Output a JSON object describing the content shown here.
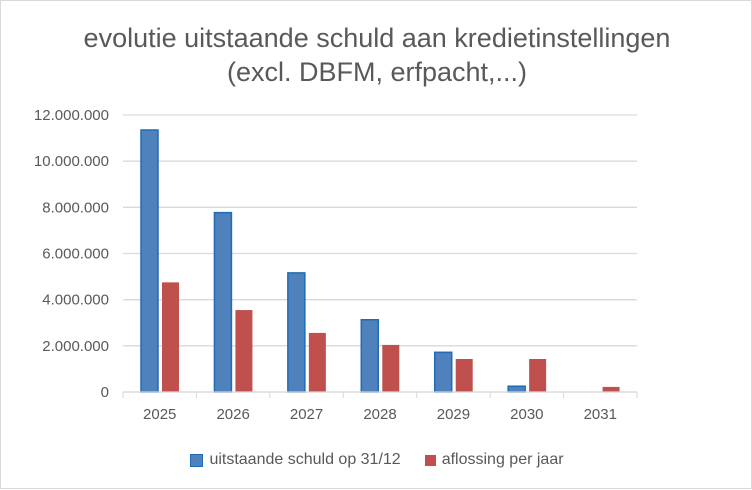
{
  "chart_data": {
    "type": "bar",
    "title_line1": "evolutie uitstaande schuld aan kredietinstellingen",
    "title_line2": "(excl. DBFM, erfpacht,...)",
    "categories": [
      "2025",
      "2026",
      "2027",
      "2028",
      "2029",
      "2030",
      "2031"
    ],
    "series": [
      {
        "name": "uitstaande schuld op 31/12",
        "color": "#4f81bd",
        "values": [
          11350000,
          7770000,
          5160000,
          3130000,
          1720000,
          250000,
          0
        ]
      },
      {
        "name": "aflossing per jaar",
        "color": "#c0504d",
        "values": [
          4750000,
          3550000,
          2560000,
          2040000,
          1430000,
          1430000,
          220000
        ]
      }
    ],
    "yticks": [
      "0",
      "2.000.000",
      "4.000.000",
      "6.000.000",
      "8.000.000",
      "10.000.000",
      "12.000.000"
    ],
    "ylim": [
      0,
      12000000
    ],
    "grid": true,
    "legend": "bottom"
  }
}
